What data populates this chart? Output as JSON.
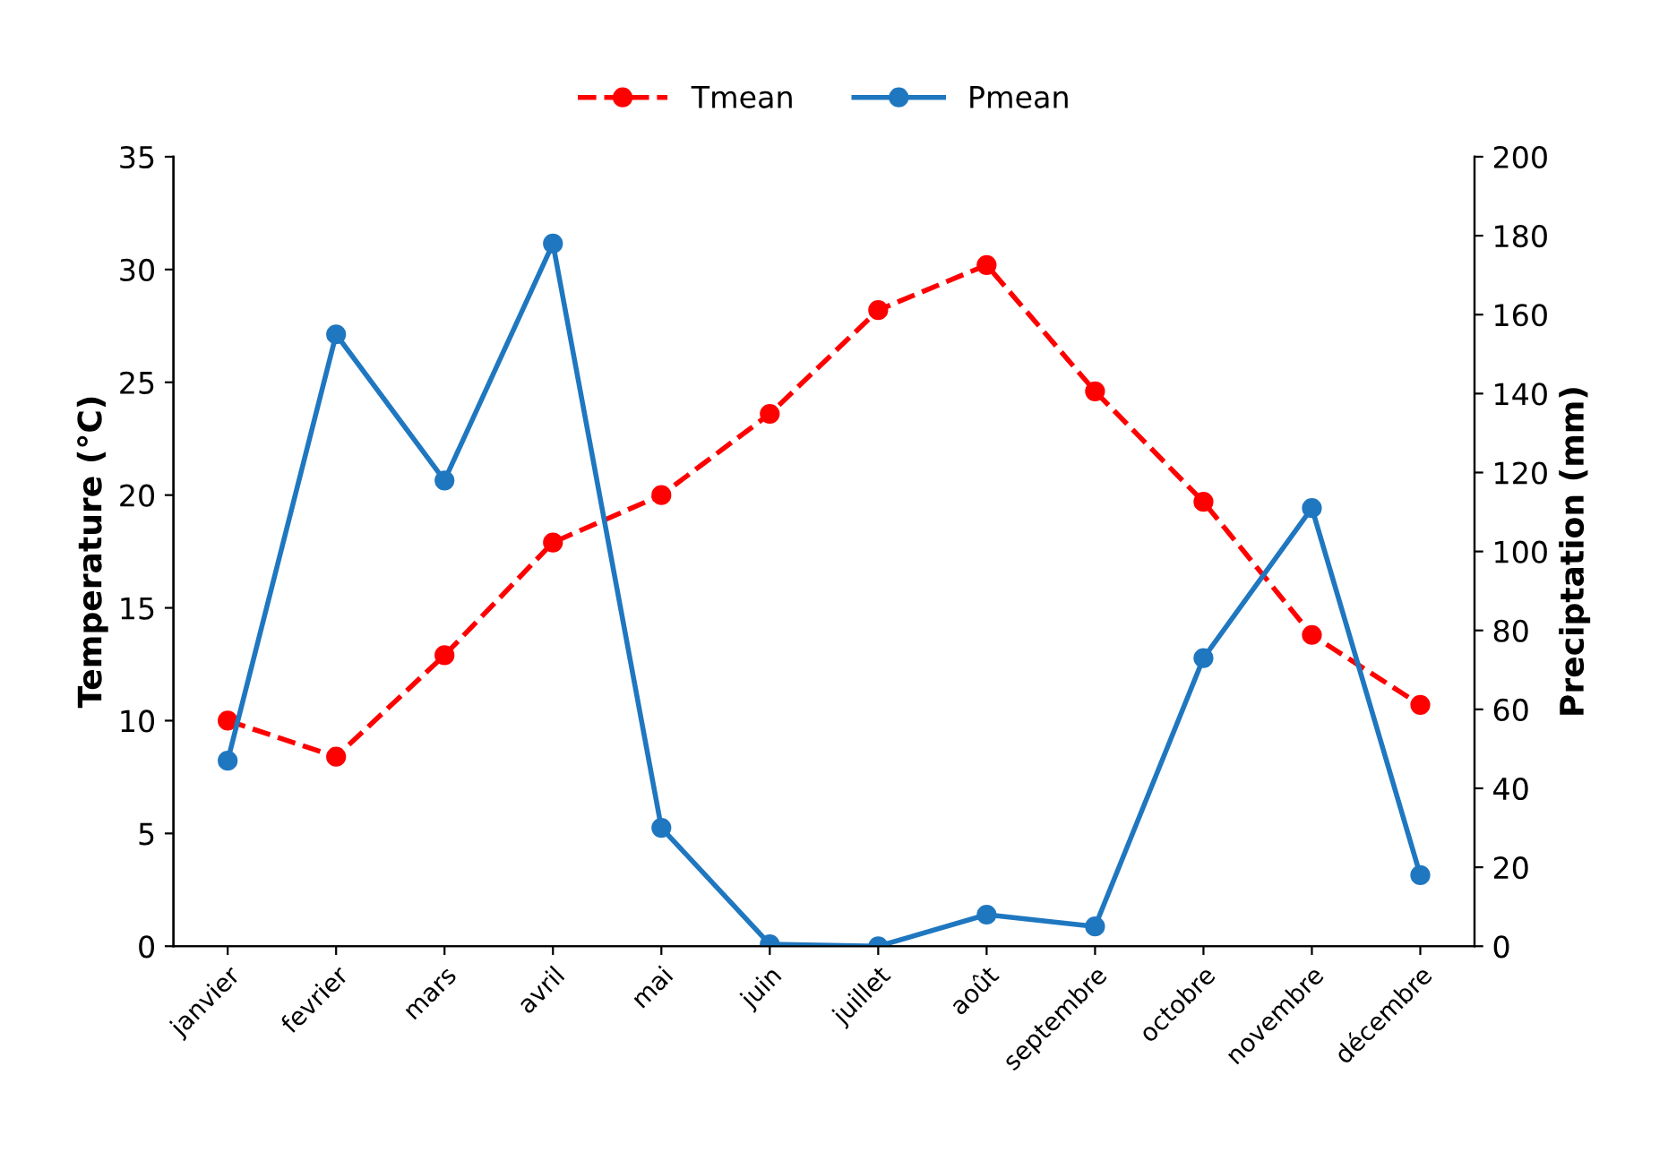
{
  "chart_data": {
    "type": "line",
    "categories": [
      "janvier",
      "fevrier",
      "mars",
      "avril",
      "mai",
      "juin",
      "juillet",
      "août",
      "septembre",
      "octobre",
      "novembre",
      "décembre"
    ],
    "series": [
      {
        "name": "Tmean",
        "color": "#ff0000",
        "line_style": "dashed",
        "marker": "circle",
        "values": [
          10.0,
          8.4,
          12.9,
          17.9,
          20.0,
          23.6,
          28.2,
          30.2,
          24.6,
          19.7,
          13.8,
          10.7
        ]
      },
      {
        "name": "Pmean",
        "color": "#1f77c0",
        "line_style": "solid",
        "marker": "circle",
        "axis": "y2",
        "values": [
          47,
          155,
          118,
          178,
          30,
          0.5,
          0,
          8,
          5,
          73,
          111,
          18
        ]
      }
    ],
    "ylabel": "Temperature (°C)",
    "y2label": "Preciptation (mm)",
    "ylim": [
      0,
      35
    ],
    "yticks": [
      0,
      5,
      10,
      15,
      20,
      25,
      30,
      35
    ],
    "y2lim": [
      0,
      200
    ],
    "y2ticks": [
      0,
      20,
      40,
      60,
      80,
      100,
      120,
      140,
      160,
      180,
      200
    ],
    "grid": false,
    "legend": "top"
  }
}
